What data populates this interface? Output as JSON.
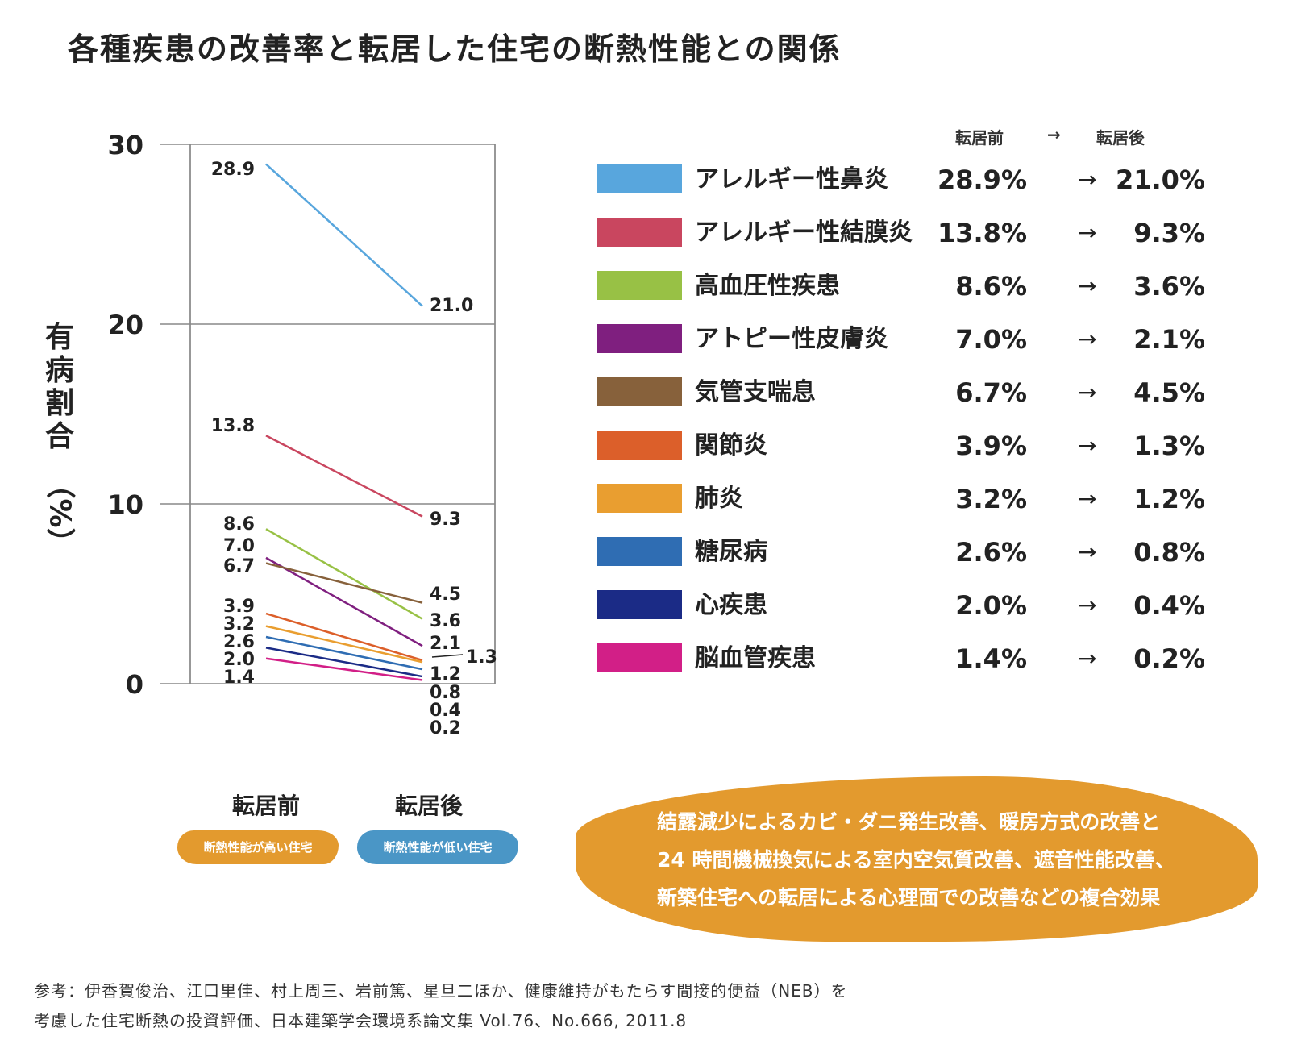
{
  "title": "各種疾患の改善率と転居した住宅の断熱性能との関係",
  "chart_data": {
    "type": "line",
    "categories": [
      "転居前",
      "転居後"
    ],
    "ylabel": "有病割合",
    "ylabel_unit": "（%）",
    "ylim": [
      0,
      30
    ],
    "yticks": [
      0,
      10,
      20,
      30
    ],
    "grid": true,
    "series": [
      {
        "name": "アレルギー性鼻炎",
        "values": [
          28.9,
          21.0
        ],
        "color": "#58a6dd"
      },
      {
        "name": "アレルギー性結膜炎",
        "values": [
          13.8,
          9.3
        ],
        "color": "#c9465f"
      },
      {
        "name": "高血圧性疾患",
        "values": [
          8.6,
          3.6
        ],
        "color": "#98c145"
      },
      {
        "name": "アトピー性皮膚炎",
        "values": [
          7.0,
          2.1
        ],
        "color": "#7f1f7f"
      },
      {
        "name": "気管支喘息",
        "values": [
          6.7,
          4.5
        ],
        "color": "#87613b"
      },
      {
        "name": "関節炎",
        "values": [
          3.9,
          1.3
        ],
        "color": "#dc5f2a"
      },
      {
        "name": "肺炎",
        "values": [
          3.2,
          1.2
        ],
        "color": "#e99e30"
      },
      {
        "name": "糖尿病",
        "values": [
          2.6,
          0.8
        ],
        "color": "#2f6db3"
      },
      {
        "name": "心疾患",
        "values": [
          2.0,
          0.4
        ],
        "color": "#1b2b86"
      },
      {
        "name": "脳血管疾患",
        "values": [
          1.4,
          0.2
        ],
        "color": "#d21f87"
      }
    ],
    "before_labels": [
      "28.9",
      "13.8",
      "8.6",
      "7.0",
      "6.7",
      "3.9",
      "3.2",
      "2.6",
      "2.0",
      "1.4"
    ],
    "after_labels": [
      "21.0",
      "9.3",
      "4.5",
      "3.6",
      "2.1",
      "1.3",
      "1.2",
      "0.8",
      "0.4",
      "0.2"
    ]
  },
  "categories_sub": {
    "before": "断熱性能が高い住宅",
    "after": "断熱性能が低い住宅",
    "before_color": "#e39a2e",
    "after_color": "#4a96c6"
  },
  "legend": {
    "header_before": "転居前",
    "header_arrow": "→",
    "header_after": "転居後",
    "rows": [
      {
        "name": "アレルギー性鼻炎",
        "before": "28.9%",
        "arrow": "→",
        "after": "21.0%",
        "color": "#58a6dd"
      },
      {
        "name": "アレルギー性結膜炎",
        "before": "13.8%",
        "arrow": "→",
        "after": "9.3%",
        "color": "#c9465f"
      },
      {
        "name": "高血圧性疾患",
        "before": "8.6%",
        "arrow": "→",
        "after": "3.6%",
        "color": "#98c145"
      },
      {
        "name": "アトピー性皮膚炎",
        "before": "7.0%",
        "arrow": "→",
        "after": "2.1%",
        "color": "#7f1f7f"
      },
      {
        "name": "気管支喘息",
        "before": "6.7%",
        "arrow": "→",
        "after": "4.5%",
        "color": "#87613b"
      },
      {
        "name": "関節炎",
        "before": "3.9%",
        "arrow": "→",
        "after": "1.3%",
        "color": "#dc5f2a"
      },
      {
        "name": "肺炎",
        "before": "3.2%",
        "arrow": "→",
        "after": "1.2%",
        "color": "#e99e30"
      },
      {
        "name": "糖尿病",
        "before": "2.6%",
        "arrow": "→",
        "after": "0.8%",
        "color": "#2f6db3"
      },
      {
        "name": "心疾患",
        "before": "2.0%",
        "arrow": "→",
        "after": "0.4%",
        "color": "#1b2b86"
      },
      {
        "name": "脳血管疾患",
        "before": "1.4%",
        "arrow": "→",
        "after": "0.2%",
        "color": "#d21f87"
      }
    ]
  },
  "note": {
    "line1": "結露減少によるカビ・ダニ発生改善、暖房方式の改善と",
    "line2": "24 時間機械換気による室内空気質改善、遮音性能改善、",
    "line3": "新築住宅への転居による心理面での改善などの複合効果"
  },
  "reference": {
    "line1": "参考：伊香賀俊治、江口里佳、村上周三、岩前篤、星旦二ほか、健康維持がもたらす間接的便益（NEB）を",
    "line2": "考慮した住宅断熱の投資評価、日本建築学会環境系論文集 Vol.76、No.666, 2011.8"
  }
}
